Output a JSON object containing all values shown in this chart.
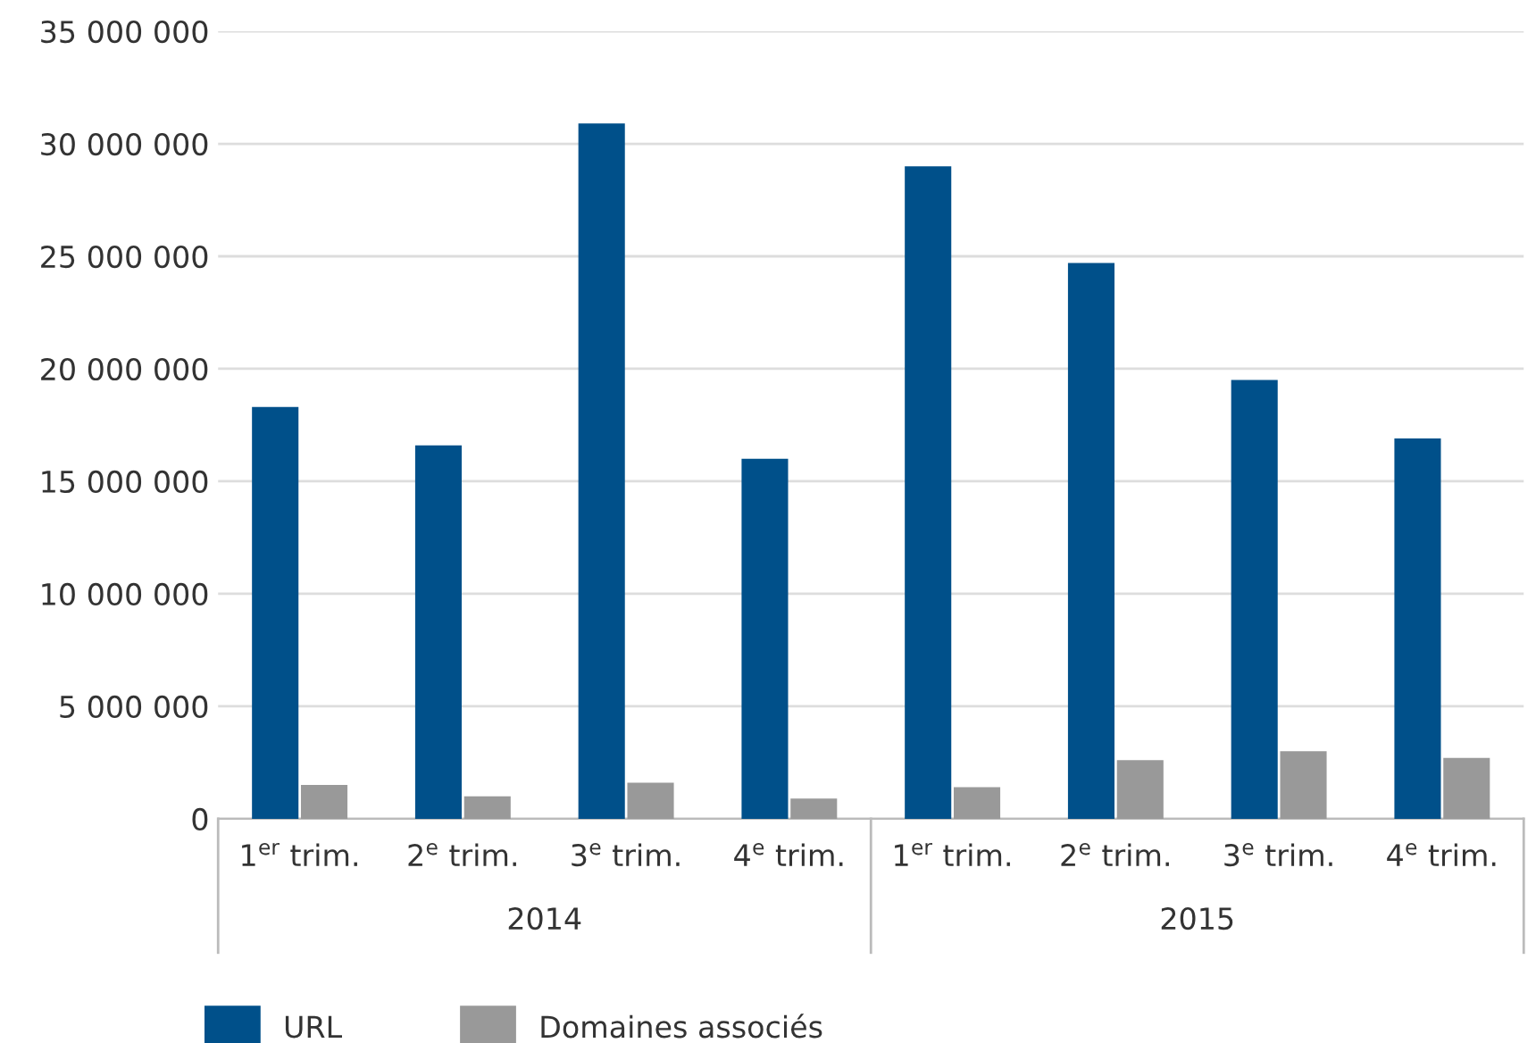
{
  "chart_data": {
    "type": "bar",
    "categories": [
      "1$^{er}$ trim.",
      "2$^{e}$ trim.",
      "3$^{e}$ trim.",
      "4$^{e}$ trim.",
      "1$^{er}$ trim.",
      "2$^{e}$ trim.",
      "3$^{e}$ trim.",
      "4$^{e}$ trim."
    ],
    "series": [
      {
        "name": "URL",
        "color": "#00508a",
        "values": [
          18300000,
          16600000,
          30900000,
          16000000,
          29000000,
          24700000,
          19500000,
          16900000
        ]
      },
      {
        "name": "Domaines associés",
        "color": "#999999",
        "values": [
          1500000,
          1000000,
          1600000,
          900000,
          1400000,
          2600000,
          3000000,
          2700000
        ]
      }
    ],
    "ylim": [
      0,
      35000000
    ],
    "yticks": [
      {
        "value": 0,
        "label": "0"
      },
      {
        "value": 5000000,
        "label": "5 000 000"
      },
      {
        "value": 10000000,
        "label": "10 000 000"
      },
      {
        "value": 15000000,
        "label": "15 000 000"
      },
      {
        "value": 20000000,
        "label": "20 000 000"
      },
      {
        "value": 25000000,
        "label": "25 000 000"
      },
      {
        "value": 30000000,
        "label": "30 000 000"
      },
      {
        "value": 35000000,
        "label": "35 000 000"
      }
    ],
    "annotations": [
      "2014",
      "2015"
    ],
    "grid": "y",
    "legend": "bottom left"
  }
}
